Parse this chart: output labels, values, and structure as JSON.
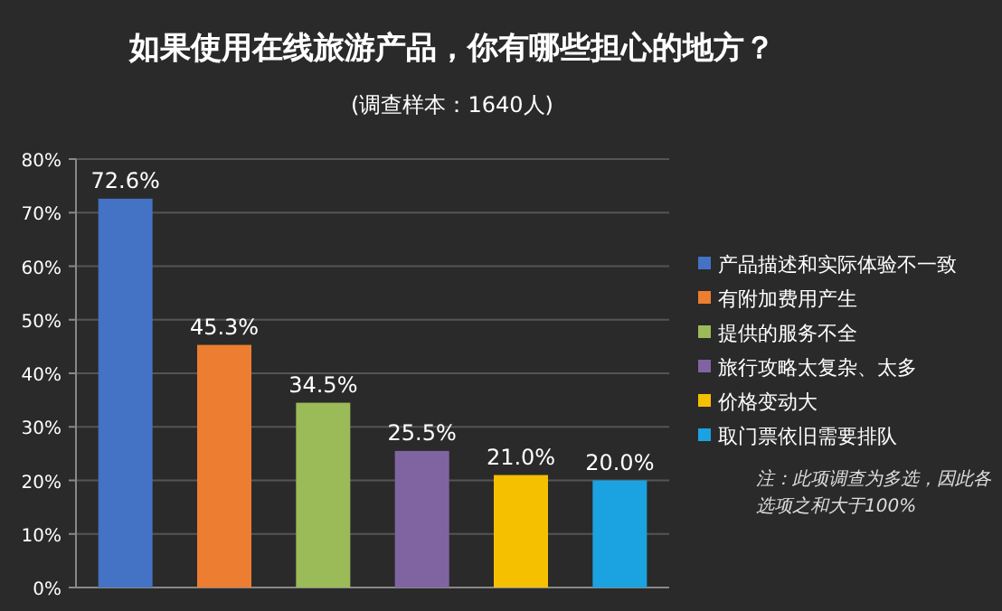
{
  "chart_data": {
    "type": "bar",
    "title": "如果使用在线旅游产品，你有哪些担心的地方？",
    "subtitle": "(调查样本：1640人)",
    "categories": [
      null,
      null,
      null,
      null,
      null,
      null
    ],
    "series": [
      {
        "name": "产品描述和实际体验不一致",
        "color": "#4472c4",
        "values": [
          72.6,
          null,
          null,
          null,
          null,
          null
        ],
        "value_labels": [
          "72.6%",
          null,
          null,
          null,
          null,
          null
        ]
      },
      {
        "name": "有附加费用产生",
        "color": "#ed7d31",
        "values": [
          null,
          45.3,
          null,
          null,
          null,
          null
        ],
        "value_labels": [
          null,
          "45.3%",
          null,
          null,
          null,
          null
        ]
      },
      {
        "name": "提供的服务不全",
        "color": "#9bbb59",
        "values": [
          null,
          null,
          34.5,
          null,
          null,
          null
        ],
        "value_labels": [
          null,
          null,
          "34.5%",
          null,
          null,
          null
        ]
      },
      {
        "name": "旅行攻略太复杂、太多",
        "color": "#8064a2",
        "values": [
          null,
          null,
          null,
          25.5,
          null,
          null
        ],
        "value_labels": [
          null,
          null,
          null,
          "25.5%",
          null,
          null
        ]
      },
      {
        "name": "价格变动大",
        "color": "#f5c000",
        "values": [
          null,
          null,
          null,
          null,
          21.0,
          null
        ],
        "value_labels": [
          null,
          null,
          null,
          null,
          "21.0%",
          null
        ]
      },
      {
        "name": "取门票依旧需要排队",
        "color": "#1aa3e0",
        "values": [
          null,
          null,
          null,
          null,
          null,
          20.0
        ],
        "value_labels": [
          null,
          null,
          null,
          null,
          null,
          "20.0%"
        ]
      }
    ],
    "ylim": [
      0,
      80
    ],
    "yticks": [
      {
        "value": 0,
        "label": "0%"
      },
      {
        "value": 10,
        "label": "10%"
      },
      {
        "value": 20,
        "label": "20%"
      },
      {
        "value": 30,
        "label": "30%"
      },
      {
        "value": 40,
        "label": "40%"
      },
      {
        "value": 50,
        "label": "50%"
      },
      {
        "value": 60,
        "label": "60%"
      },
      {
        "value": 70,
        "label": "70%"
      },
      {
        "value": 80,
        "label": "80%"
      }
    ],
    "grid": "y",
    "legend": "right",
    "tick_labels": "y",
    "annotations": [
      "注：此项调查为多选，因此各选项之和大于100%"
    ]
  }
}
